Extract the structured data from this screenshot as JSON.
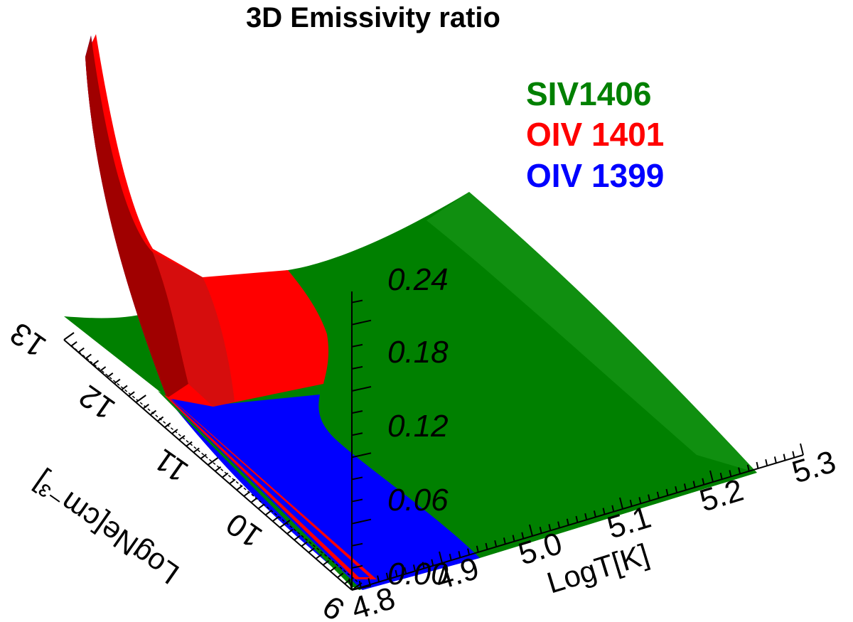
{
  "chart_data": {
    "type": "surface",
    "title": "3D Emissivity ratio",
    "xlabel": "LogT[K]",
    "ylabel": "LogNe[cm⁻³]",
    "zlabel": "",
    "x_ticks": [
      "4.8",
      "4.9",
      "5.0",
      "5.1",
      "5.2",
      "5.3"
    ],
    "y_ticks": [
      "9",
      "10",
      "11",
      "12",
      "13"
    ],
    "z_ticks": [
      "0.00",
      "0.06",
      "0.12",
      "0.18",
      "0.24"
    ],
    "xlim": [
      4.8,
      5.3
    ],
    "ylim": [
      9,
      13
    ],
    "zlim": [
      0,
      0.27
    ],
    "series": [
      {
        "name": "SIV1406",
        "color": "#008000"
      },
      {
        "name": "OIV 1401",
        "color": "#ff0000"
      },
      {
        "name": "OIV 1399",
        "color": "#0000ff"
      }
    ]
  }
}
